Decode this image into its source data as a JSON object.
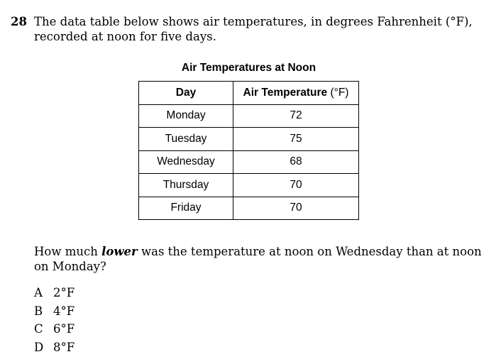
{
  "question": {
    "number": "28",
    "text": "The data table below shows air temperatures, in degrees Fahrenheit (°F), recorded at noon for five days."
  },
  "table": {
    "title": "Air Temperatures at Noon",
    "headers": {
      "day": "Day",
      "temp_label": "Air Temperature",
      "temp_unit": "(°F)"
    },
    "rows": [
      {
        "day": "Monday",
        "temp": "72"
      },
      {
        "day": "Tuesday",
        "temp": "75"
      },
      {
        "day": "Wednesday",
        "temp": "68"
      },
      {
        "day": "Thursday",
        "temp": "70"
      },
      {
        "day": "Friday",
        "temp": "70"
      }
    ]
  },
  "prompt": {
    "before": "How much ",
    "emphasis": "lower",
    "after": " was the temperature at noon on Wednesday than at noon on Monday?"
  },
  "choices": [
    {
      "letter": "A",
      "text": "2°F"
    },
    {
      "letter": "B",
      "text": "4°F"
    },
    {
      "letter": "C",
      "text": "6°F"
    },
    {
      "letter": "D",
      "text": "8°F"
    }
  ]
}
